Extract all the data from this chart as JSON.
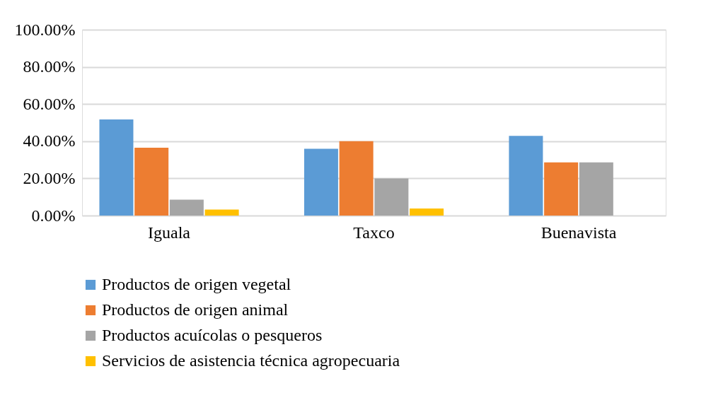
{
  "chart_data": {
    "type": "bar",
    "categories": [
      "Iguala",
      "Taxco",
      "Buenavista"
    ],
    "series": [
      {
        "name": "Productos de origen vegetal",
        "color": "#5b9bd5",
        "values": [
          51.7,
          35.9,
          42.9
        ]
      },
      {
        "name": "Productos de origen animal",
        "color": "#ed7d31",
        "values": [
          36.5,
          40.0,
          28.6
        ]
      },
      {
        "name": "Productos acuícolas o pesqueros",
        "color": "#a5a5a5",
        "values": [
          8.6,
          20.0,
          28.6
        ]
      },
      {
        "name": "Servicios de asistencia técnica agropecuaria",
        "color": "#ffc000",
        "values": [
          3.2,
          3.8,
          0
        ]
      }
    ],
    "ylim": [
      0,
      100
    ],
    "yticks": [
      {
        "value": 0,
        "label": "0.00%"
      },
      {
        "value": 20,
        "label": "20.00%"
      },
      {
        "value": 40,
        "label": "40.00%"
      },
      {
        "value": 60,
        "label": "60.00%"
      },
      {
        "value": 80,
        "label": "80.00%"
      },
      {
        "value": 100,
        "label": "100.00%"
      }
    ],
    "grid": "y",
    "legend": "bottom"
  }
}
